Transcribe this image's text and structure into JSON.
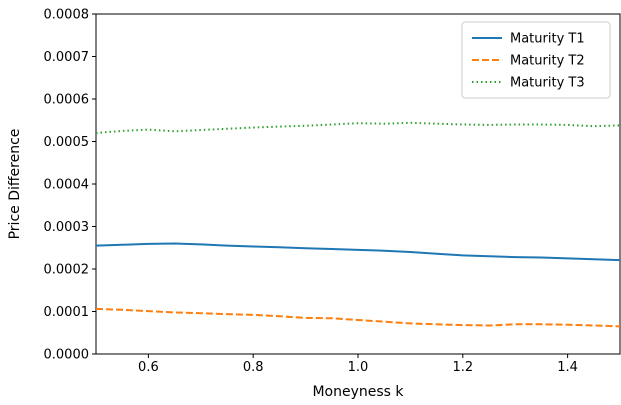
{
  "chart_data": {
    "type": "line",
    "title": "",
    "xlabel": "Moneyness k",
    "ylabel": "Price Difference",
    "xlim": [
      0.5,
      1.5
    ],
    "ylim": [
      0.0,
      0.0008
    ],
    "xticks": [
      0.6,
      0.8,
      1.0,
      1.2,
      1.4
    ],
    "xtick_labels": [
      "0.6",
      "0.8",
      "1.0",
      "1.2",
      "1.4"
    ],
    "yticks": [
      0.0,
      0.0001,
      0.0002,
      0.0003,
      0.0004,
      0.0005,
      0.0006,
      0.0007,
      0.0008
    ],
    "ytick_labels": [
      "0.0000",
      "0.0001",
      "0.0002",
      "0.0003",
      "0.0004",
      "0.0005",
      "0.0006",
      "0.0007",
      "0.0008"
    ],
    "grid": false,
    "legend_position": "top-right",
    "series": [
      {
        "name": "Maturity T1",
        "color": "#1f77b4",
        "style": "solid",
        "x": [
          0.5,
          0.55,
          0.6,
          0.65,
          0.7,
          0.75,
          0.8,
          0.85,
          0.9,
          0.95,
          1.0,
          1.05,
          1.1,
          1.15,
          1.2,
          1.25,
          1.3,
          1.35,
          1.4,
          1.45,
          1.5
        ],
        "y": [
          0.000255,
          0.000257,
          0.000259,
          0.00026,
          0.000258,
          0.000255,
          0.000253,
          0.000251,
          0.000249,
          0.000247,
          0.000245,
          0.000243,
          0.00024,
          0.000236,
          0.000232,
          0.00023,
          0.000228,
          0.000227,
          0.000225,
          0.000223,
          0.000221
        ]
      },
      {
        "name": "Maturity T2",
        "color": "#ff7f0e",
        "style": "dashed",
        "x": [
          0.5,
          0.55,
          0.6,
          0.65,
          0.7,
          0.75,
          0.8,
          0.85,
          0.9,
          0.95,
          1.0,
          1.05,
          1.1,
          1.15,
          1.2,
          1.25,
          1.3,
          1.35,
          1.4,
          1.45,
          1.5
        ],
        "y": [
          0.000106,
          0.000104,
          0.000101,
          9.8e-05,
          9.6e-05,
          9.4e-05,
          9.2e-05,
          8.9e-05,
          8.5e-05,
          8.4e-05,
          8e-05,
          7.6e-05,
          7.2e-05,
          7e-05,
          6.8e-05,
          6.7e-05,
          7e-05,
          7e-05,
          6.9e-05,
          6.7e-05,
          6.5e-05
        ]
      },
      {
        "name": "Maturity T3",
        "color": "#2ca02c",
        "style": "dotted",
        "x": [
          0.5,
          0.55,
          0.6,
          0.65,
          0.7,
          0.75,
          0.8,
          0.85,
          0.9,
          0.95,
          1.0,
          1.05,
          1.1,
          1.15,
          1.2,
          1.25,
          1.3,
          1.35,
          1.4,
          1.45,
          1.5
        ],
        "y": [
          0.00052,
          0.000525,
          0.000528,
          0.000524,
          0.000527,
          0.00053,
          0.000533,
          0.000535,
          0.000537,
          0.00054,
          0.000543,
          0.000542,
          0.000544,
          0.000542,
          0.00054,
          0.000539,
          0.00054,
          0.00054,
          0.000539,
          0.000536,
          0.000538
        ]
      }
    ]
  }
}
